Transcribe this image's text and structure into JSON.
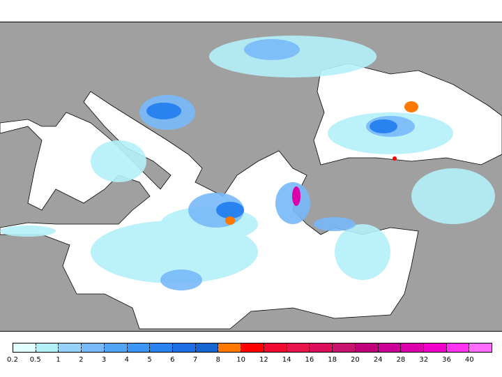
{
  "map": {
    "land_color": "#a0a0a0",
    "sea_color": "#ffffff"
  },
  "legend": {
    "labels": [
      "0.2",
      "0.5",
      "1",
      "2",
      "3",
      "4",
      "5",
      "6",
      "7",
      "8",
      "10",
      "12",
      "14",
      "16",
      "18",
      "20",
      "24",
      "28",
      "32",
      "36",
      "40"
    ],
    "colors": [
      "#e0fffe",
      "#b4f0f8",
      "#96d2fa",
      "#78b9fa",
      "#50a5f5",
      "#3c96f5",
      "#2882f0",
      "#1e6ee6",
      "#1464d2",
      "#ff7800",
      "#ff0000",
      "#f00a32",
      "#e6144b",
      "#dc0f5a",
      "#c8146e",
      "#c0007a",
      "#cc0096",
      "#dc00aa",
      "#f000c8",
      "#ff32f0",
      "#ff6eff"
    ]
  }
}
